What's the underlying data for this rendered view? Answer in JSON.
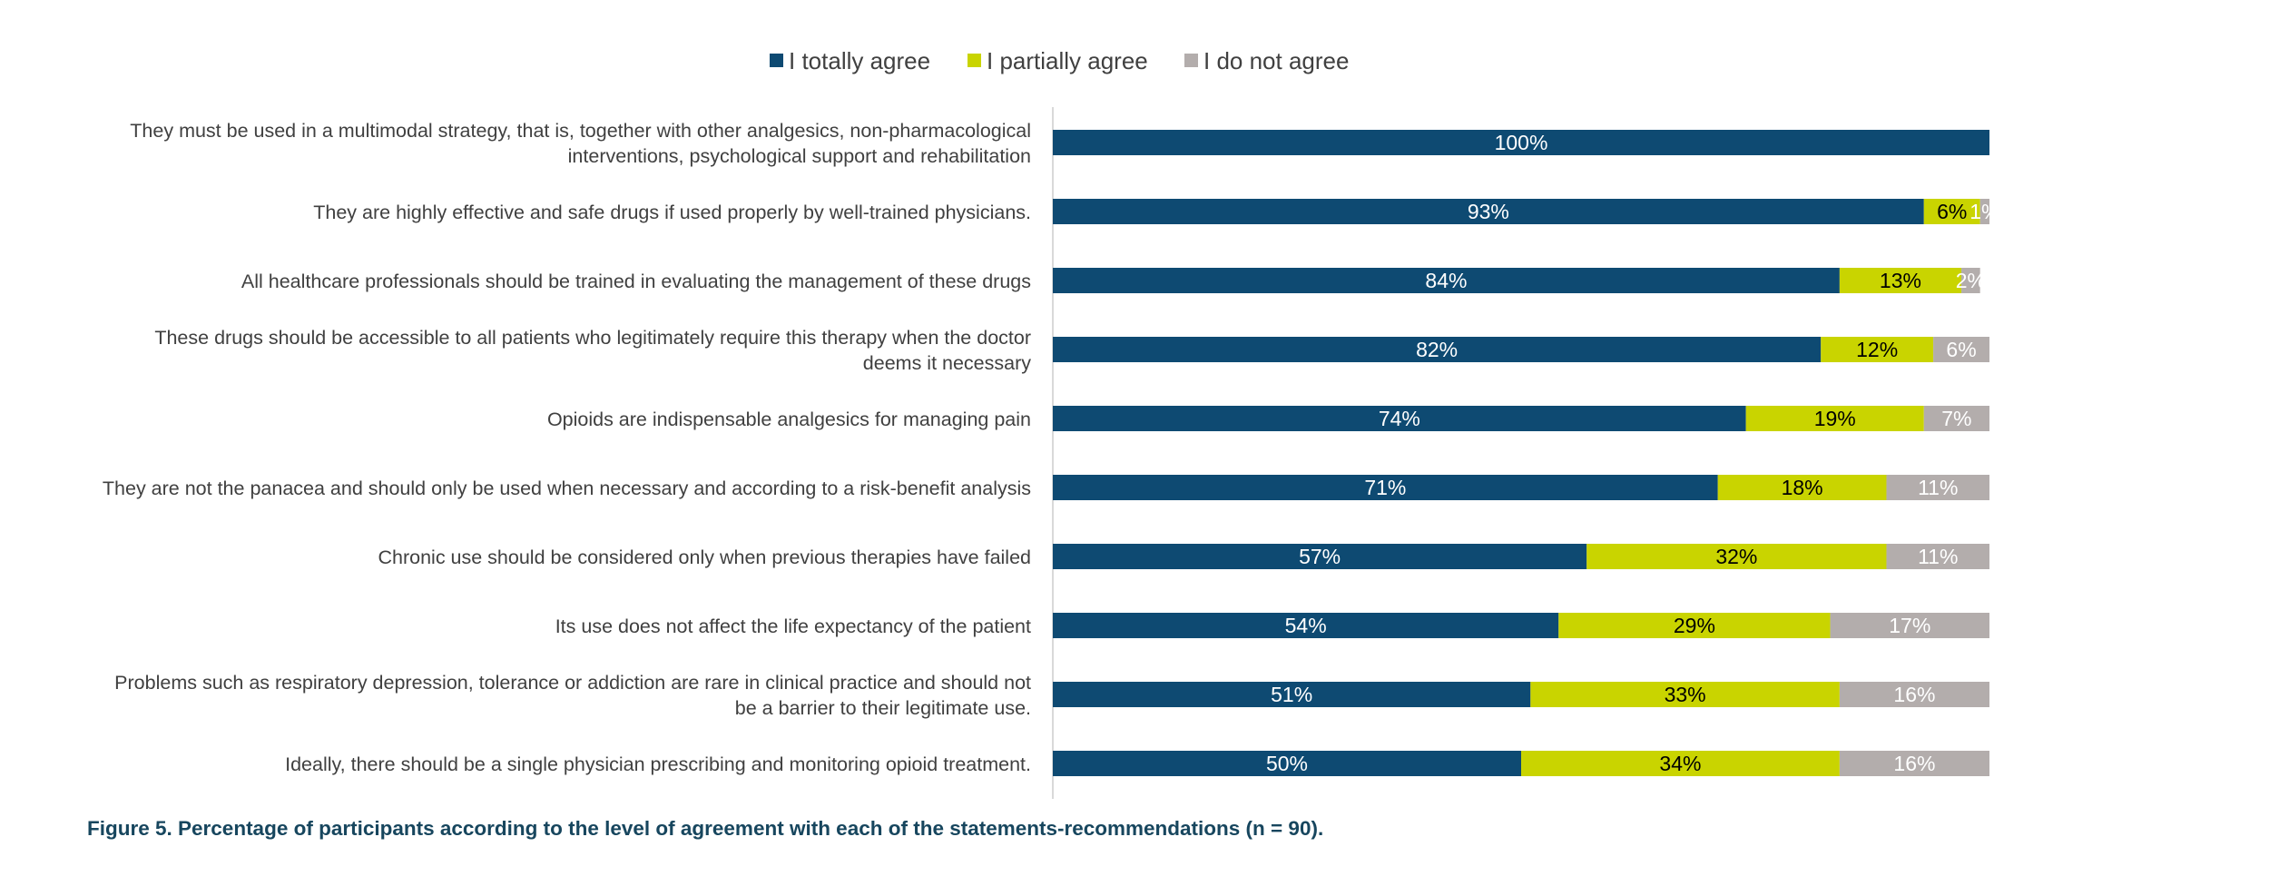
{
  "chart_data": {
    "type": "bar",
    "orientation": "horizontal",
    "stacked": true,
    "percent_stacked": true,
    "categories": [
      "They must be used in a multimodal strategy, that is, together with other analgesics, non-pharmacological interventions, psychological support and rehabilitation",
      "They are highly effective and safe drugs if used properly by well-trained physicians.",
      "All healthcare professionals should be trained in evaluating the management of these drugs",
      "These drugs should be accessible to all patients who legitimately require this therapy when the doctor deems it necessary",
      "Opioids are indispensable analgesics for managing pain",
      "They are not the panacea and should only be used when necessary and according to a risk-benefit analysis",
      "Chronic use should be considered only when previous therapies have failed",
      "Its use does not affect the life expectancy of the patient",
      "Problems such as respiratory depression, tolerance or addiction are rare in clinical practice and should not be a barrier to their legitimate use.",
      "Ideally, there should be a single physician prescribing and monitoring opioid treatment."
    ],
    "category_lines": [
      [
        "They must be used in a multimodal strategy, that is, together with other analgesics, non-pharmacological",
        "interventions, psychological support and rehabilitation"
      ],
      [
        "They are highly effective and safe drugs if used properly by well-trained physicians."
      ],
      [
        "All healthcare professionals should be trained in evaluating the management of these drugs"
      ],
      [
        "These drugs should be accessible to all patients who legitimately require this therapy when the doctor",
        "deems it necessary"
      ],
      [
        "Opioids are indispensable analgesics for managing pain"
      ],
      [
        "They are not the panacea and should only be used when necessary and according to a risk-benefit analysis"
      ],
      [
        "Chronic use should be considered only when previous therapies have failed"
      ],
      [
        "Its use does not affect the life expectancy of the patient"
      ],
      [
        "Problems such as respiratory depression, tolerance or addiction are rare in clinical practice and should not",
        "be a barrier to their legitimate use."
      ],
      [
        "Ideally, there should be a single physician prescribing and monitoring opioid treatment."
      ]
    ],
    "series": [
      {
        "name": "I totally agree",
        "color": "#0e4a72",
        "label_color": "#ffffff",
        "values": [
          100,
          93,
          84,
          82,
          74,
          71,
          57,
          54,
          51,
          50
        ]
      },
      {
        "name": "I partially agree",
        "color": "#c9d400",
        "label_color": "#000000",
        "values": [
          0,
          6,
          13,
          12,
          19,
          18,
          32,
          29,
          33,
          34
        ]
      },
      {
        "name": "I do not agree",
        "color": "#b3adac",
        "label_color": "#ffffff",
        "values": [
          0,
          1,
          2,
          6,
          7,
          11,
          11,
          17,
          16,
          16
        ]
      }
    ],
    "xlim": [
      0,
      100
    ],
    "value_suffix": "%",
    "legend_position": "top",
    "grid": false
  },
  "caption": "Figure 5. Percentage of participants according to the level of agreement with each of the statements-recommendations (n = 90)."
}
